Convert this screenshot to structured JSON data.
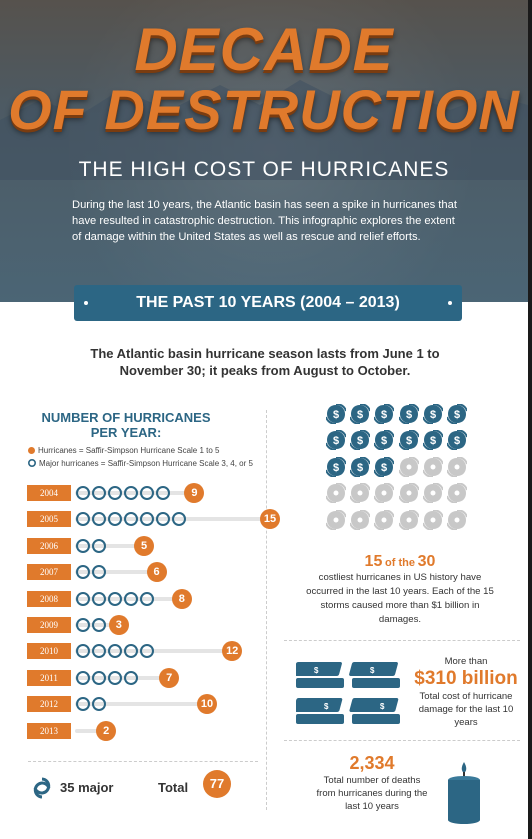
{
  "hero": {
    "title_line1": "DECADE",
    "title_line2": "OF DESTRUCTION",
    "subtitle": "THE HIGH COST OF HURRICANES",
    "intro": "During the last 10 years, the Atlantic basin has seen a spike in hurricanes that have resulted in catastrophic destruction. This infographic explores the extent of damage within the United States as well as rescue and relief efforts."
  },
  "banner": {
    "label": "THE PAST 10 YEARS (2004 – 2013)"
  },
  "season_text": "The Atlantic basin hurricane season lasts from June 1 to November 30; it peaks from August to October.",
  "hurricanes_chart": {
    "title": "NUMBER OF HURRICANES PER YEAR:",
    "legend_hurricanes": "Hurricanes = Saffir-Simpson Hurricane Scale 1 to 5",
    "legend_major": "Major hurricanes = Saffir-Simpson Hurricane Scale 3, 4, or 5",
    "total_major_label": "35 major",
    "total_label": "Total",
    "total_value": "77"
  },
  "chart_data": {
    "type": "bar",
    "title": "NUMBER OF HURRICANES PER YEAR:",
    "categories": [
      "2004",
      "2005",
      "2006",
      "2007",
      "2008",
      "2009",
      "2010",
      "2011",
      "2012",
      "2013"
    ],
    "series": [
      {
        "name": "Hurricanes",
        "values": [
          9,
          15,
          5,
          6,
          8,
          3,
          12,
          7,
          10,
          2
        ]
      },
      {
        "name": "Major hurricanes",
        "values": [
          6,
          7,
          2,
          2,
          5,
          2,
          5,
          4,
          2,
          0
        ]
      }
    ],
    "labels": [
      "9",
      "15",
      "5",
      "6",
      "8",
      "3",
      "12",
      "7",
      "10",
      "2"
    ]
  },
  "costliest": {
    "count": "15",
    "of_word": "of the",
    "total": "30",
    "text": "costliest hurricanes in US history have occurred in the last 10 years. Each of the 15 storms caused more than $1 billion in damages.",
    "highlighted": 15,
    "grid_total": 30,
    "colors": {
      "highlight": "#2c6684",
      "dim": "#c8c8c8"
    }
  },
  "damage": {
    "prefix": "More than",
    "amount": "$310 billion",
    "text": "Total cost of hurricane damage for the last 10 years"
  },
  "deaths": {
    "value": "2,334",
    "text": "Total number of deaths from hurricanes during the last 10 years"
  },
  "colors": {
    "orange": "#e07a2c",
    "blue": "#2c6684",
    "track": "#e4e4e4"
  }
}
